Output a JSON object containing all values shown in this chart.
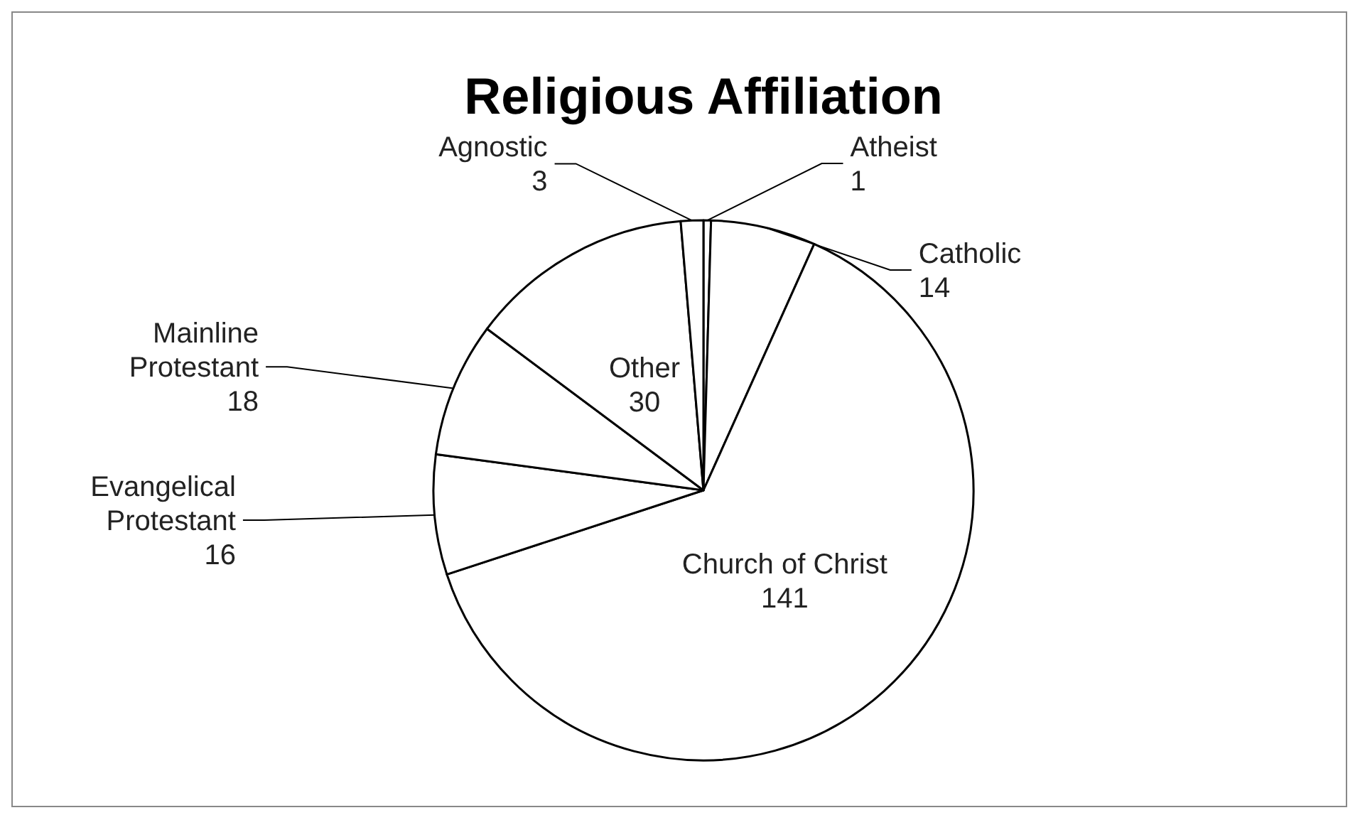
{
  "chart_data": {
    "type": "pie",
    "title": "Religious Affiliation",
    "categories": [
      "Atheist",
      "Catholic",
      "Church of Christ",
      "Evangelical Protestant",
      "Mainline Protestant",
      "Other",
      "Agnostic"
    ],
    "values": [
      1,
      14,
      141,
      16,
      18,
      30,
      3
    ],
    "colors": [
      "#ffffff",
      "#ffffff",
      "#ffffff",
      "#ffffff",
      "#ffffff",
      "#ffffff",
      "#ffffff"
    ],
    "data_labels": true
  }
}
